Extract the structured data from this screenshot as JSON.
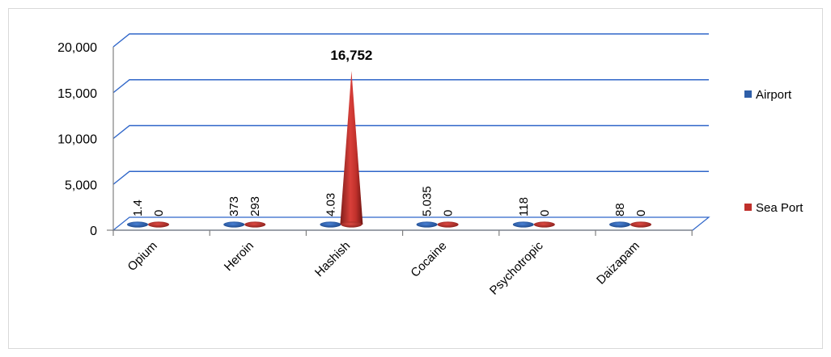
{
  "chart_data": {
    "type": "bar",
    "style": "3d-cone",
    "title": "",
    "xlabel": "",
    "ylabel": "",
    "categories": [
      "Opium",
      "Heroin",
      "Hashish",
      "Cocaine",
      "Psychotropic",
      "Daizapam"
    ],
    "series": [
      {
        "name": "Airport",
        "color": "#2f5fa8",
        "values": [
          1.4,
          373,
          4.03,
          5.035,
          118,
          88
        ],
        "labels": [
          "1.4",
          "373",
          "4.03",
          "5.035",
          "118",
          "88"
        ]
      },
      {
        "name": "Sea Port",
        "color": "#c0302b",
        "values": [
          0,
          293,
          16752,
          0,
          0,
          0
        ],
        "labels": [
          "0",
          "293",
          "16,752",
          "0",
          "0",
          "0"
        ]
      }
    ],
    "ylim": [
      0,
      20000
    ],
    "yticks": [
      "0",
      "5,000",
      "10,000",
      "15,000",
      "20,000"
    ],
    "ytick_values": [
      0,
      5000,
      10000,
      15000,
      20000
    ],
    "gridline_color": "#2f66c9",
    "grid": true,
    "legend_position": "right"
  }
}
